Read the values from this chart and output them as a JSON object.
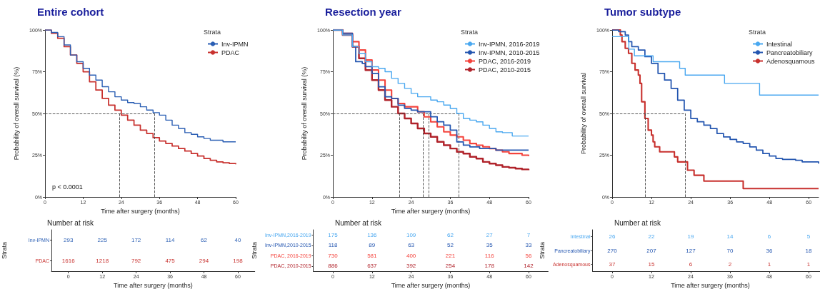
{
  "chart_data": [
    {
      "type": "step",
      "title": "Entire cohort",
      "xlabel": "Time after surgery (months)",
      "ylabel": "Probability of overall survival (%)",
      "legend_title": "Strata",
      "legend": "top right",
      "grid": false,
      "xlim": [
        0,
        60
      ],
      "xticks": [
        0,
        12,
        24,
        36,
        48,
        60
      ],
      "ylim": [
        0,
        100
      ],
      "yticks": [
        {
          "value": 0,
          "label": "0%"
        },
        {
          "value": 25,
          "label": "25%"
        },
        {
          "value": 50,
          "label": "50%"
        },
        {
          "value": 75,
          "label": "75%"
        },
        {
          "value": 100,
          "label": "100%"
        }
      ],
      "annotations": [
        "p < 0.0001"
      ],
      "ref_lines": [
        {
          "axis": "y",
          "value": 50,
          "line_style": "dashed"
        },
        {
          "axis": "x",
          "value": 23.5,
          "line_style": "dashed"
        },
        {
          "axis": "x",
          "value": 34.4,
          "line_style": "dashed"
        }
      ],
      "series": [
        {
          "name": "Inv-IPMN",
          "color": "#2b5fb4",
          "x": [
            0,
            2,
            4,
            6,
            8,
            10,
            12,
            14,
            16,
            18,
            20,
            22,
            24,
            26,
            28,
            30,
            32,
            34,
            36,
            38,
            40,
            42,
            44,
            46,
            48,
            50,
            52,
            54,
            56,
            58,
            60
          ],
          "values": [
            100,
            98.5,
            96,
            91,
            85,
            81,
            77,
            73,
            70,
            66,
            63,
            60,
            58,
            56.5,
            56,
            54,
            52,
            50.5,
            49,
            46,
            43,
            41,
            38.5,
            37.5,
            36,
            35,
            34,
            34,
            33,
            33,
            33
          ]
        },
        {
          "name": "PDAC",
          "color": "#c8312e",
          "x": [
            0,
            2,
            4,
            6,
            8,
            10,
            12,
            14,
            16,
            18,
            20,
            22,
            24,
            26,
            28,
            30,
            32,
            34,
            36,
            38,
            40,
            42,
            44,
            46,
            48,
            50,
            52,
            54,
            56,
            58,
            60
          ],
          "values": [
            100,
            98,
            95,
            90,
            85,
            80,
            75,
            69,
            64,
            59,
            55,
            52,
            49,
            46,
            43,
            40,
            38,
            35.5,
            33.5,
            32,
            30.5,
            29,
            27.5,
            26,
            24.5,
            23,
            22,
            21,
            20.5,
            20,
            19.5
          ]
        }
      ]
    },
    {
      "type": "step",
      "title": "Resection year",
      "xlabel": "Time after surgery (months)",
      "ylabel": "Probability of overall survival (%)",
      "legend_title": "Strata",
      "legend": "top right",
      "grid": false,
      "xlim": [
        0,
        60
      ],
      "xticks": [
        0,
        12,
        24,
        36,
        48,
        60
      ],
      "ylim": [
        0,
        100
      ],
      "yticks": [
        {
          "value": 0,
          "label": "0%"
        },
        {
          "value": 25,
          "label": "25%"
        },
        {
          "value": 50,
          "label": "50%"
        },
        {
          "value": 75,
          "label": "75%"
        },
        {
          "value": 100,
          "label": "100%"
        }
      ],
      "ref_lines": [
        {
          "axis": "y",
          "value": 50,
          "line_style": "dashed"
        },
        {
          "axis": "x",
          "value": 20.4,
          "line_style": "dashed"
        },
        {
          "axis": "x",
          "value": 27.6,
          "line_style": "dashed"
        },
        {
          "axis": "x",
          "value": 29.3,
          "line_style": "dashed"
        },
        {
          "axis": "x",
          "value": 38.7,
          "line_style": "dashed"
        }
      ],
      "series": [
        {
          "name": "Inv-IPMN, 2016-2019",
          "color": "#4aa8f0",
          "x": [
            0,
            3,
            6,
            8,
            10,
            12,
            14,
            16,
            18,
            20,
            22,
            24,
            26,
            28,
            30,
            32,
            34,
            36,
            38,
            40,
            42,
            44,
            46,
            48,
            50,
            52,
            54,
            55,
            60
          ],
          "values": [
            100,
            97,
            90,
            86,
            81,
            78,
            77,
            75,
            71,
            68,
            65,
            62,
            60,
            60,
            58,
            57,
            55,
            53,
            50,
            47,
            46,
            45,
            43,
            41,
            39,
            38.5,
            38.5,
            36.5,
            36.5
          ]
        },
        {
          "name": "Inv-IPMN, 2010-2015",
          "color": "#2456b0",
          "x": [
            0,
            3,
            6,
            7,
            9,
            10,
            12,
            14,
            16,
            18,
            20,
            22,
            24,
            26,
            28,
            30,
            32,
            34,
            36,
            38,
            40,
            42,
            45,
            50,
            60
          ],
          "values": [
            100,
            98,
            90,
            81,
            80,
            78,
            74,
            66,
            60,
            59,
            55,
            53,
            52,
            51,
            51,
            48,
            45,
            43,
            40,
            33,
            31,
            30,
            29,
            28,
            28
          ]
        },
        {
          "name": "PDAC, 2016-2019",
          "color": "#f4433c",
          "x": [
            0,
            3,
            6,
            8,
            10,
            12,
            14,
            16,
            18,
            20,
            22,
            24,
            26,
            28,
            30,
            32,
            34,
            36,
            38,
            40,
            42,
            44,
            46,
            48,
            50,
            52,
            54,
            56,
            58,
            60
          ],
          "values": [
            100,
            98,
            93,
            88,
            82,
            76,
            70,
            64,
            59,
            56,
            54,
            54,
            51,
            48,
            45,
            42,
            39,
            37,
            36,
            34,
            32,
            31,
            30,
            29,
            28,
            27,
            26,
            26,
            25,
            24.5
          ]
        },
        {
          "name": "PDAC, 2010-2015",
          "color": "#b0222a",
          "x": [
            0,
            3,
            6,
            8,
            10,
            12,
            14,
            16,
            18,
            20,
            22,
            24,
            26,
            28,
            30,
            32,
            34,
            36,
            38,
            40,
            42,
            44,
            46,
            48,
            50,
            52,
            54,
            56,
            58,
            60
          ],
          "values": [
            100,
            97,
            90,
            83,
            76,
            70,
            64,
            58,
            54,
            50,
            47,
            44,
            41,
            38,
            36,
            33,
            31,
            29,
            27,
            26,
            24,
            23,
            21,
            20,
            19,
            18,
            17.5,
            17,
            16.5,
            16
          ]
        }
      ]
    },
    {
      "type": "step",
      "title": "Tumor subtype",
      "ylabel": "Probability of overall survival",
      "legend_title": "Strata",
      "legend": "top right",
      "grid": false,
      "xlim": [
        0,
        63
      ],
      "xticks": [
        0,
        12,
        24,
        36,
        48,
        60
      ],
      "ylim": [
        0,
        100
      ],
      "yticks": [
        {
          "value": 0,
          "label": "0%"
        },
        {
          "value": 25,
          "label": "25%"
        },
        {
          "value": 50,
          "label": "50%"
        },
        {
          "value": 75,
          "label": "75%"
        },
        {
          "value": 100,
          "label": "100%"
        }
      ],
      "ref_lines": [
        {
          "axis": "y",
          "value": 50,
          "line_style": "dashed"
        },
        {
          "axis": "x",
          "value": 10.1,
          "line_style": "dashed"
        },
        {
          "axis": "x",
          "value": 22.3,
          "line_style": "dashed"
        }
      ],
      "series": [
        {
          "name": "Intestinal",
          "color": "#4aa8f0",
          "x": [
            0,
            5.1,
            6.8,
            12.5,
            20.6,
            22.3,
            34.3,
            45,
            63
          ],
          "values": [
            96,
            88.5,
            84.5,
            81,
            77,
            73,
            68,
            61,
            61
          ]
        },
        {
          "name": "Pancreatobiliary",
          "color": "#2456b0",
          "x": [
            0,
            2,
            4,
            5,
            6,
            8,
            10,
            12,
            14,
            16,
            18,
            20,
            22,
            24,
            26,
            28,
            30,
            32,
            34,
            36,
            38,
            40,
            42,
            44,
            46,
            48,
            50,
            52,
            54,
            56,
            58,
            60,
            63
          ],
          "values": [
            100,
            99,
            97,
            93,
            90,
            88,
            84,
            80,
            74,
            70,
            65,
            58,
            52,
            47,
            45,
            43,
            41,
            38,
            36,
            34.5,
            33,
            32,
            30,
            28,
            26,
            24.5,
            23,
            22.5,
            22.5,
            22,
            21,
            21,
            20
          ]
        },
        {
          "name": "Adenosquamous",
          "color": "#c8312e",
          "x": [
            0,
            2.5,
            3,
            4,
            5,
            6,
            7,
            8,
            8.5,
            9,
            10,
            11,
            12,
            12.5,
            13,
            14.5,
            19,
            20,
            23,
            25,
            28,
            40,
            63
          ],
          "values": [
            100,
            97,
            93,
            89,
            86,
            80,
            76,
            73,
            68,
            57,
            47,
            40,
            37,
            33,
            30,
            27,
            24,
            21,
            16,
            13,
            9.5,
            5,
            5
          ]
        }
      ]
    },
    {
      "type": "heatmap",
      "title": "Number at risk",
      "xlabel": "Time after surgery (months)",
      "ylabel": "Strata",
      "data_labels": true,
      "categories": [
        "0",
        "12",
        "24",
        "36",
        "48",
        "60"
      ],
      "y_categories": [
        "Inv-IPMN",
        "PDAC"
      ],
      "colors": [
        "#2b5fb4",
        "#c8312e"
      ],
      "cells": [
        [
          293,
          225,
          172,
          114,
          62,
          40
        ],
        [
          1616,
          1218,
          792,
          475,
          294,
          198
        ]
      ]
    },
    {
      "type": "heatmap",
      "title": "Number at risk",
      "xlabel": "Time after surgery (months)",
      "ylabel": "Strata",
      "data_labels": true,
      "categories": [
        "0",
        "12",
        "24",
        "36",
        "48",
        "60"
      ],
      "y_categories": [
        "Inv-IPMN,2016-2019",
        "Inv-IPMN,2010-2015",
        "PDAC, 2016-2019",
        "PDAC, 2010-2015"
      ],
      "colors": [
        "#4aa8f0",
        "#2456b0",
        "#f4433c",
        "#b0222a"
      ],
      "cells": [
        [
          175,
          136,
          109,
          62,
          27,
          7
        ],
        [
          118,
          89,
          63,
          52,
          35,
          33
        ],
        [
          730,
          581,
          400,
          221,
          116,
          56
        ],
        [
          886,
          637,
          392,
          254,
          178,
          142
        ]
      ]
    },
    {
      "type": "heatmap",
      "title": "Number at risk",
      "xlabel": "Time after surgery (months)",
      "ylabel": "Strata",
      "data_labels": true,
      "categories": [
        "0",
        "12",
        "24",
        "36",
        "48",
        "60"
      ],
      "y_categories": [
        "Intestinal",
        "Pancreatobiliary",
        "Adenosquamous"
      ],
      "colors": [
        "#4aa8f0",
        "#2456b0",
        "#c8312e"
      ],
      "cells": [
        [
          26,
          22,
          19,
          14,
          6,
          5
        ],
        [
          270,
          207,
          127,
          70,
          36,
          18
        ],
        [
          37,
          15,
          6,
          2,
          1,
          1
        ]
      ]
    }
  ]
}
